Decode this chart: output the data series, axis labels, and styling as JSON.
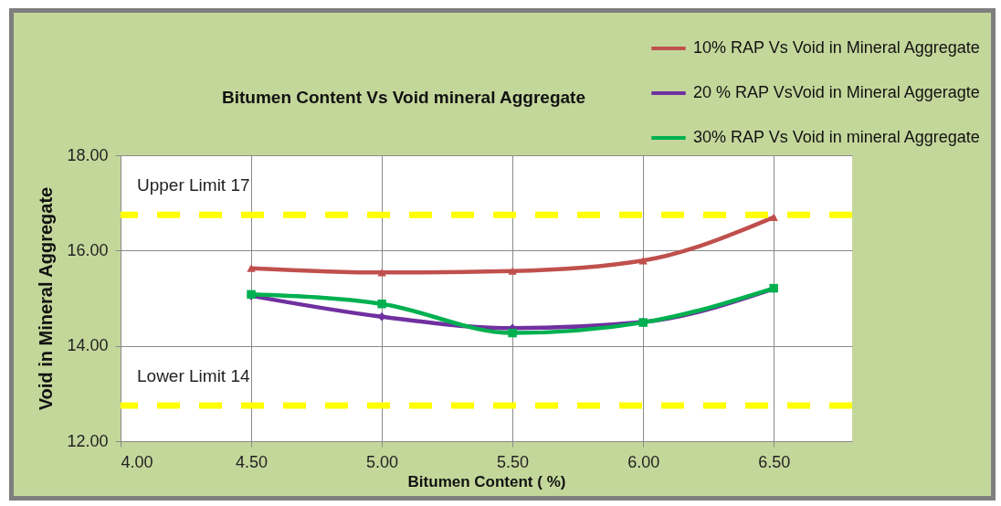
{
  "chart_data": {
    "type": "line",
    "title": "Bitumen Content Vs Void mineral Aggregate",
    "xlabel": "Bitumen Content ( %)",
    "ylabel": "Void in Mineral Aggregate",
    "x": [
      4.5,
      5.0,
      5.5,
      6.0,
      6.5
    ],
    "series": [
      {
        "name": "10% RAP Vs Void in Mineral Aggregate",
        "color": "#c0504d",
        "marker": "triangle",
        "values": [
          15.63,
          15.54,
          15.57,
          15.79,
          16.7
        ]
      },
      {
        "name": "20 % RAP VsVoid in Mineral Aggeragte",
        "color": "#7030a0",
        "marker": "diamond",
        "values": [
          15.05,
          14.61,
          14.37,
          14.5,
          15.2
        ]
      },
      {
        "name": "30% RAP Vs Void in mineral Aggregate",
        "color": "#00b050",
        "marker": "square",
        "values": [
          15.08,
          14.88,
          14.27,
          14.49,
          15.21
        ]
      }
    ],
    "xlim": [
      4,
      6.8
    ],
    "xticks": [
      {
        "value": 4,
        "label": "4.00"
      },
      {
        "value": 4.5,
        "label": "4.50"
      },
      {
        "value": 5,
        "label": "5.00"
      },
      {
        "value": 5.5,
        "label": "5.50"
      },
      {
        "value": 6,
        "label": "6.00"
      },
      {
        "value": 6.5,
        "label": "6.50"
      }
    ],
    "ylim": [
      12,
      18
    ],
    "yticks": [
      {
        "value": 12,
        "label": "12.00"
      },
      {
        "value": 14,
        "label": "14.00"
      },
      {
        "value": 16,
        "label": "16.00"
      },
      {
        "value": 18,
        "label": "18.00"
      }
    ],
    "ref_lines": [
      {
        "axis": "y",
        "value": 16.75,
        "label": "Upper Limit 17",
        "color": "#ffff00",
        "line_style": "dashed"
      },
      {
        "axis": "y",
        "value": 12.75,
        "label": "Lower Limit 14",
        "color": "#ffff00",
        "line_style": "dashed"
      }
    ],
    "grid": true,
    "legend": "top right"
  }
}
